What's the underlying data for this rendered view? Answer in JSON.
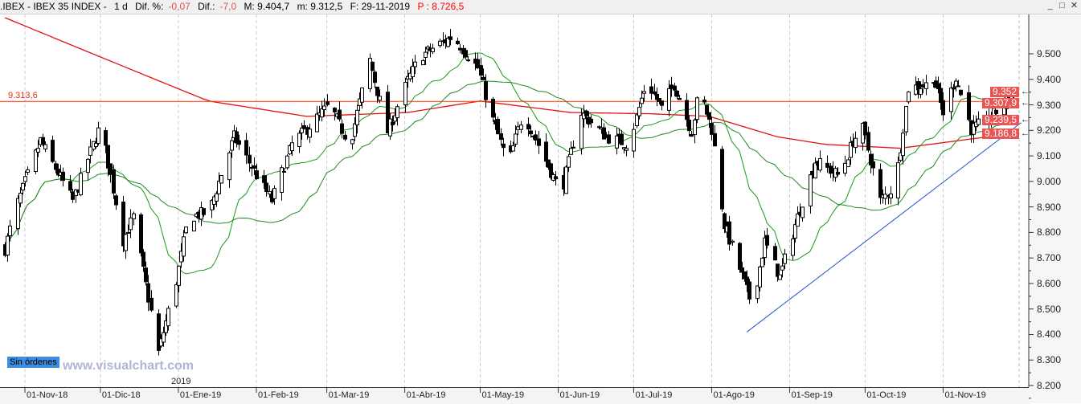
{
  "header": {
    "symbol": ".IBEX - IBEX 35 INDEX -",
    "period": "1 d",
    "dif_pct_label": "Dif. %:",
    "dif_pct": "-0,07",
    "dif_label": "Dif.:",
    "dif": "-7,0",
    "max": "M: 9.404,7",
    "min": "m: 9.312,5",
    "date": "F: 29-11-2019",
    "p": "P : 8.726,5"
  },
  "window_buttons": [
    "_",
    "□",
    "✕"
  ],
  "orders_badge": "Sin órdenes",
  "watermark": "www.visualchart.com",
  "year_marker": "2019",
  "horizontal_line": {
    "label": "9.313,6",
    "value": 9313.6,
    "color": "#ff3000"
  },
  "price_labels": [
    "9.352",
    "9.307,9",
    "9.239,5",
    "9.186,8"
  ],
  "colors": {
    "ma_fast": "#1a9a1a",
    "ma_slow": "#e01010",
    "trendline": "#2050d0",
    "label_bg": "#e85555"
  },
  "chart_data": {
    "type": "candlestick",
    "x_ticks": [
      "01-Nov-18",
      "01-Dic-18",
      "01-Ene-19",
      "01-Feb-19",
      "01-Mar-19",
      "01-Abr-19",
      "01-May-19",
      "01-Jun-19",
      "01-Jul-19",
      "01-Ago-19",
      "01-Sep-19",
      "01-Oct-19",
      "01-Nov-19"
    ],
    "y_ticks": [
      "9.500",
      "9.400",
      "9.300",
      "9.200",
      "9.100",
      "9.000",
      "8.900",
      "8.800",
      "8.700",
      "8.600",
      "8.500",
      "8.400",
      "8.300",
      "8.200"
    ],
    "ylim": [
      8200,
      9500
    ],
    "close_path": [
      [
        "2018-10-24",
        8735
      ],
      [
        "2018-10-28",
        8890
      ],
      [
        "2018-11-07",
        9160
      ],
      [
        "2018-11-20",
        8925
      ],
      [
        "2018-12-01",
        9225
      ],
      [
        "2018-12-05",
        9020
      ],
      [
        "2018-12-10",
        8770
      ],
      [
        "2018-12-14",
        8860
      ],
      [
        "2018-12-24",
        8330
      ],
      [
        "2018-12-31",
        8610
      ],
      [
        "2019-01-05",
        8860
      ],
      [
        "2019-01-13",
        8880
      ],
      [
        "2019-01-23",
        9175
      ],
      [
        "2019-02-07",
        8925
      ],
      [
        "2019-02-15",
        9145
      ],
      [
        "2019-03-02",
        9300
      ],
      [
        "2019-03-10",
        9145
      ],
      [
        "2019-03-18",
        9475
      ],
      [
        "2019-03-25",
        9195
      ],
      [
        "2019-04-02",
        9395
      ],
      [
        "2019-04-07",
        9490
      ],
      [
        "2019-04-20",
        9570
      ],
      [
        "2019-04-30",
        9445
      ],
      [
        "2019-05-05",
        9270
      ],
      [
        "2019-05-12",
        9065
      ],
      [
        "2019-05-18",
        9270
      ],
      [
        "2019-06-02",
        8955
      ],
      [
        "2019-06-10",
        9270
      ],
      [
        "2019-06-20",
        9175
      ],
      [
        "2019-06-29",
        9145
      ],
      [
        "2019-07-06",
        9395
      ],
      [
        "2019-07-12",
        9285
      ],
      [
        "2019-07-17",
        9380
      ],
      [
        "2019-07-24",
        9195
      ],
      [
        "2019-07-27",
        9365
      ],
      [
        "2019-08-01",
        9205
      ],
      [
        "2019-08-06",
        8830
      ],
      [
        "2019-08-17",
        8515
      ],
      [
        "2019-08-22",
        8765
      ],
      [
        "2019-08-28",
        8625
      ],
      [
        "2019-09-03",
        8830
      ],
      [
        "2019-09-11",
        9080
      ],
      [
        "2019-09-21",
        9020
      ],
      [
        "2019-09-26",
        9160
      ],
      [
        "2019-09-30",
        9205
      ],
      [
        "2019-10-07",
        8925
      ],
      [
        "2019-10-13",
        8985
      ],
      [
        "2019-10-18",
        9365
      ],
      [
        "2019-10-26",
        9380
      ],
      [
        "2019-10-28",
        9410
      ],
      [
        "2019-11-01",
        9270
      ],
      [
        "2019-11-06",
        9410
      ],
      [
        "2019-11-12",
        9205
      ],
      [
        "2019-11-19",
        9240
      ],
      [
        "2019-11-29",
        9352
      ]
    ],
    "ma_slow_path": [
      [
        "2018-10-22",
        9650
      ],
      [
        "2018-11-23",
        9520
      ],
      [
        "2018-12-24",
        9395
      ],
      [
        "2019-01-13",
        9315
      ],
      [
        "2019-02-21",
        9255
      ],
      [
        "2019-04-02",
        9270
      ],
      [
        "2019-05-01",
        9315
      ],
      [
        "2019-06-06",
        9270
      ],
      [
        "2019-07-08",
        9265
      ],
      [
        "2019-07-31",
        9255
      ],
      [
        "2019-08-27",
        9175
      ],
      [
        "2019-09-15",
        9145
      ],
      [
        "2019-10-15",
        9130
      ],
      [
        "2019-11-15",
        9170
      ],
      [
        "2019-11-29",
        9186.8
      ]
    ],
    "trendline": [
      [
        "2019-08-15",
        8410
      ],
      [
        "2019-12-02",
        9230
      ]
    ]
  }
}
